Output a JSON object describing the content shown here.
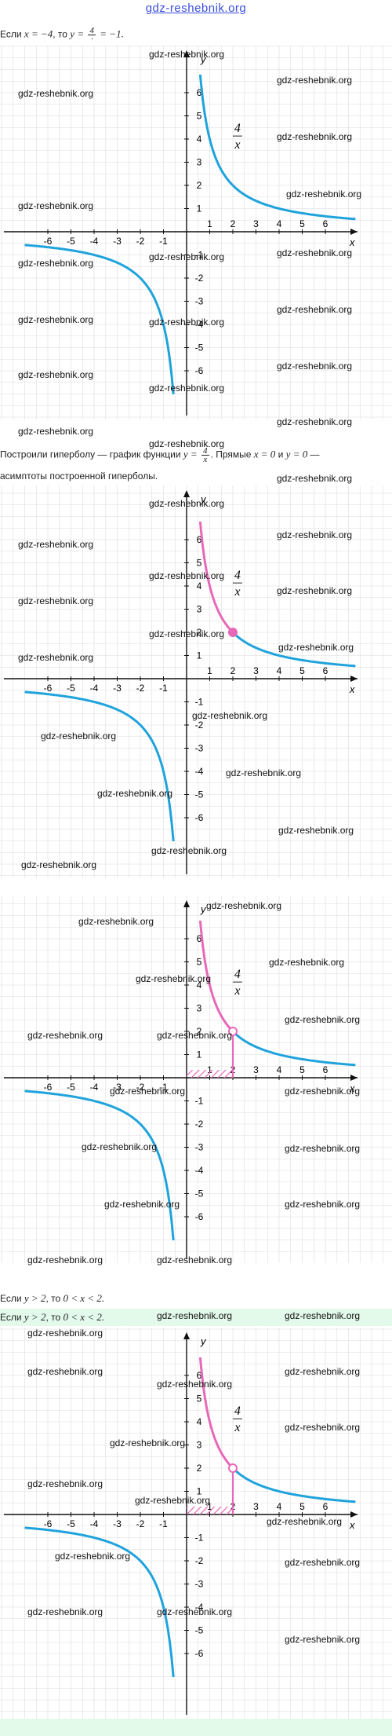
{
  "header": {
    "site": "gdz-reshebnik.org"
  },
  "watermark": "gdz-reshebnik.org",
  "line1": {
    "prefix": "Если ",
    "x_eq": "x = −4",
    "mid": ", то ",
    "y_eq": "y =",
    "frac_num": "4",
    "frac_den": "·",
    "tail": "= −1."
  },
  "line2": {
    "prefix": "Построили гиперболу — график функции ",
    "y_eq": "y =",
    "frac_num": "4",
    "frac_den": "x",
    "tail": ". Прямые ",
    "a1": "x = 0",
    "and": " и ",
    "a2": "y = 0",
    "end": " —"
  },
  "line3": {
    "text": "асимптоты построенной гиперболы."
  },
  "line4": {
    "prefix": "Если ",
    "cond": "y > 2",
    "mid": ", то ",
    "res": "0 < x < 2."
  },
  "line5": {
    "prefix": "Если ",
    "cond": "y > 2",
    "mid": ", то ",
    "res": "0 < x < 2."
  },
  "graph_labels": {
    "x_axis": "x",
    "y_axis": "y",
    "func_num": "4",
    "func_den": "x",
    "x_ticks": [
      "-6",
      "-5",
      "-4",
      "-3",
      "-2",
      "-1",
      "1",
      "2",
      "3",
      "4",
      "5",
      "6"
    ],
    "y_ticks": [
      "6",
      "5",
      "4",
      "3",
      "2",
      "1",
      "-1",
      "-2",
      "-3",
      "-4",
      "-5",
      "-6"
    ]
  },
  "colors": {
    "curve": "#1fa3dc",
    "highlight": "#e868b8",
    "grid": "#dcdcdc",
    "axis": "#111111",
    "band": "#e3faea"
  },
  "chart_data": [
    {
      "type": "line",
      "function": "y = 4/x",
      "xlim": [
        -7,
        7.3
      ],
      "ylim": [
        -7.2,
        6.8
      ],
      "grid": true,
      "highlight": "none"
    },
    {
      "type": "line",
      "function": "y = 4/x",
      "xlim": [
        -7,
        7.3
      ],
      "ylim": [
        -7.2,
        6.8
      ],
      "grid": true,
      "highlight": "branch for 0 < x < 2, point (2, 2)"
    },
    {
      "type": "line",
      "function": "y = 4/x",
      "xlim": [
        -7,
        7.3
      ],
      "ylim": [
        -7.2,
        6.8
      ],
      "grid": true,
      "highlight": "branch for 0 < x < 2, hatched interval 0 < x < 2 on x-axis"
    },
    {
      "type": "line",
      "function": "y = 4/x",
      "xlim": [
        -7,
        7.3
      ],
      "ylim": [
        -7.2,
        6.8
      ],
      "grid": true,
      "highlight": "branch for 0 < x < 2, hatched interval 0 < x < 2 on x-axis"
    }
  ]
}
